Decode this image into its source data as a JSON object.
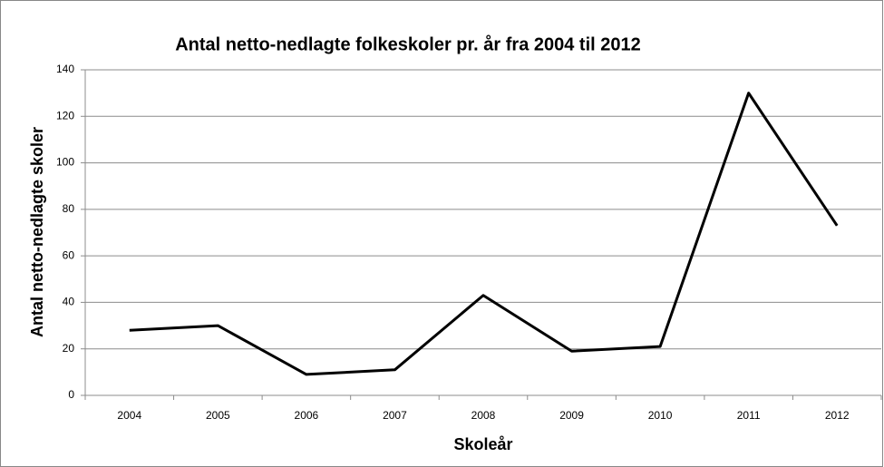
{
  "chart_data": {
    "type": "line",
    "title": "Antal netto-nedlagte folkeskoler pr. år fra 2004 til 2012",
    "x_label": "Skoleår",
    "y_label": "Antal netto-nedlagte skoler",
    "categories": [
      "2004",
      "2005",
      "2006",
      "2007",
      "2008",
      "2009",
      "2010",
      "2011",
      "2012"
    ],
    "values": [
      28,
      30,
      9,
      11,
      43,
      19,
      21,
      130,
      73
    ],
    "color": "#000000",
    "ylim": [
      0,
      140
    ],
    "yticks": [
      0,
      20,
      40,
      60,
      80,
      100,
      120,
      140
    ],
    "grid": true
  }
}
